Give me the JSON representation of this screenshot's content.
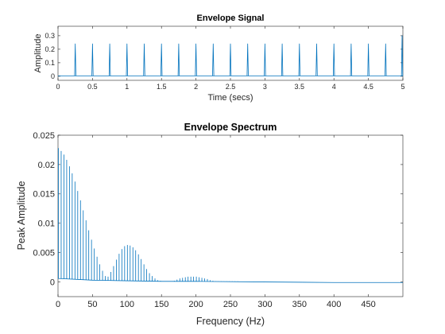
{
  "chart_data": [
    {
      "type": "line",
      "title": "Envelope Signal",
      "xlabel": "Time (secs)",
      "ylabel": "Amplitude",
      "xlim": [
        0,
        5
      ],
      "ylim": [
        -0.03,
        0.37
      ],
      "xticks": [
        0,
        0.5,
        1,
        1.5,
        2,
        2.5,
        3,
        3.5,
        4,
        4.5,
        5
      ],
      "xtick_labels": [
        "0",
        "0.5",
        "1",
        "1.5",
        "2",
        "2.5",
        "3",
        "3.5",
        "4",
        "4.5",
        "5"
      ],
      "yticks": [
        0,
        0.1,
        0.2,
        0.3
      ],
      "ytick_labels": [
        "0",
        "0.1",
        "0.2",
        "0.3"
      ],
      "grid": false,
      "series": [
        {
          "color": "#0072bd",
          "baseline": 0.003,
          "impulses": [
            {
              "x": 0.25,
              "y": 0.24
            },
            {
              "x": 0.5,
              "y": 0.24
            },
            {
              "x": 0.75,
              "y": 0.24
            },
            {
              "x": 1.0,
              "y": 0.24
            },
            {
              "x": 1.25,
              "y": 0.24
            },
            {
              "x": 1.5,
              "y": 0.24
            },
            {
              "x": 1.75,
              "y": 0.24
            },
            {
              "x": 2.0,
              "y": 0.24
            },
            {
              "x": 2.25,
              "y": 0.24
            },
            {
              "x": 2.5,
              "y": 0.24
            },
            {
              "x": 2.75,
              "y": 0.24
            },
            {
              "x": 3.0,
              "y": 0.24
            },
            {
              "x": 3.25,
              "y": 0.24
            },
            {
              "x": 3.5,
              "y": 0.24
            },
            {
              "x": 3.75,
              "y": 0.24
            },
            {
              "x": 4.0,
              "y": 0.24
            },
            {
              "x": 4.25,
              "y": 0.24
            },
            {
              "x": 4.5,
              "y": 0.24
            },
            {
              "x": 4.75,
              "y": 0.24
            },
            {
              "x": 5.0,
              "y": 0.3
            }
          ]
        }
      ]
    },
    {
      "type": "line",
      "title": "Envelope Spectrum",
      "xlabel": "Frequency (Hz)",
      "ylabel": "Peak Amplitude",
      "xlim": [
        0,
        500
      ],
      "ylim": [
        -0.0025,
        0.025
      ],
      "xticks": [
        0,
        50,
        100,
        150,
        200,
        250,
        300,
        350,
        400,
        450
      ],
      "xtick_labels": [
        "0",
        "50",
        "100",
        "150",
        "200",
        "250",
        "300",
        "350",
        "400",
        "450"
      ],
      "yticks": [
        0,
        0.005,
        0.01,
        0.015,
        0.02,
        0.025
      ],
      "ytick_labels": [
        "0",
        "0.005",
        "0.01",
        "0.015",
        "0.02",
        "0.025"
      ],
      "grid": false,
      "series": [
        {
          "color": "#0072bd",
          "peaks": [
            {
              "x": 0,
              "y": 0.0228
            },
            {
              "x": 4,
              "y": 0.0223
            },
            {
              "x": 8,
              "y": 0.0217
            },
            {
              "x": 12,
              "y": 0.0208
            },
            {
              "x": 16,
              "y": 0.0197
            },
            {
              "x": 20,
              "y": 0.0185
            },
            {
              "x": 24,
              "y": 0.0171
            },
            {
              "x": 28,
              "y": 0.0155
            },
            {
              "x": 32,
              "y": 0.0139
            },
            {
              "x": 36,
              "y": 0.0122
            },
            {
              "x": 40,
              "y": 0.0105
            },
            {
              "x": 44,
              "y": 0.0088
            },
            {
              "x": 48,
              "y": 0.0072
            },
            {
              "x": 52,
              "y": 0.0057
            },
            {
              "x": 56,
              "y": 0.0043
            },
            {
              "x": 60,
              "y": 0.003
            },
            {
              "x": 64,
              "y": 0.0019
            },
            {
              "x": 68,
              "y": 0.001
            },
            {
              "x": 72,
              "y": 0.0009
            },
            {
              "x": 76,
              "y": 0.0017
            },
            {
              "x": 80,
              "y": 0.0027
            },
            {
              "x": 84,
              "y": 0.0038
            },
            {
              "x": 88,
              "y": 0.0048
            },
            {
              "x": 92,
              "y": 0.0056
            },
            {
              "x": 96,
              "y": 0.0061
            },
            {
              "x": 100,
              "y": 0.0063
            },
            {
              "x": 104,
              "y": 0.0062
            },
            {
              "x": 108,
              "y": 0.0059
            },
            {
              "x": 112,
              "y": 0.0054
            },
            {
              "x": 116,
              "y": 0.0047
            },
            {
              "x": 120,
              "y": 0.0039
            },
            {
              "x": 124,
              "y": 0.003
            },
            {
              "x": 128,
              "y": 0.0022
            },
            {
              "x": 132,
              "y": 0.0015
            },
            {
              "x": 136,
              "y": 0.001
            },
            {
              "x": 140,
              "y": 0.0006
            },
            {
              "x": 144,
              "y": 0.0003
            },
            {
              "x": 148,
              "y": 0.0002
            },
            {
              "x": 152,
              "y": 0.0001
            },
            {
              "x": 156,
              "y": 0.0001
            },
            {
              "x": 160,
              "y": 0.0001
            },
            {
              "x": 164,
              "y": 0.0001
            },
            {
              "x": 168,
              "y": 0.0002
            },
            {
              "x": 172,
              "y": 0.0004
            },
            {
              "x": 176,
              "y": 0.0006
            },
            {
              "x": 180,
              "y": 0.0007
            },
            {
              "x": 184,
              "y": 0.0008
            },
            {
              "x": 188,
              "y": 0.0009
            },
            {
              "x": 192,
              "y": 0.0009
            },
            {
              "x": 196,
              "y": 0.0009
            },
            {
              "x": 200,
              "y": 0.0009
            },
            {
              "x": 204,
              "y": 0.0008
            },
            {
              "x": 208,
              "y": 0.0007
            },
            {
              "x": 212,
              "y": 0.0006
            },
            {
              "x": 216,
              "y": 0.0005
            },
            {
              "x": 220,
              "y": 0.0003
            },
            {
              "x": 224,
              "y": 0.0002
            },
            {
              "x": 228,
              "y": 0.0001
            },
            {
              "x": 232,
              "y": 0.0001
            },
            {
              "x": 236,
              "y": 0.0001
            },
            {
              "x": 240,
              "y": 0.0001
            },
            {
              "x": 244,
              "y": 0.0001
            },
            {
              "x": 248,
              "y": 0.0001
            },
            {
              "x": 252,
              "y": 0.0001
            },
            {
              "x": 256,
              "y": 0.0001
            },
            {
              "x": 260,
              "y": 0.0001
            }
          ],
          "floor": [
            {
              "x": 0,
              "y": 0.0006
            },
            {
              "x": 50,
              "y": 0.0003
            },
            {
              "x": 100,
              "y": 0.0002
            },
            {
              "x": 150,
              "y": 0.0001
            },
            {
              "x": 200,
              "y": 0.0001
            },
            {
              "x": 300,
              "y": 0.0
            },
            {
              "x": 400,
              "y": -0.0001
            },
            {
              "x": 500,
              "y": -0.0001
            }
          ]
        }
      ]
    }
  ]
}
